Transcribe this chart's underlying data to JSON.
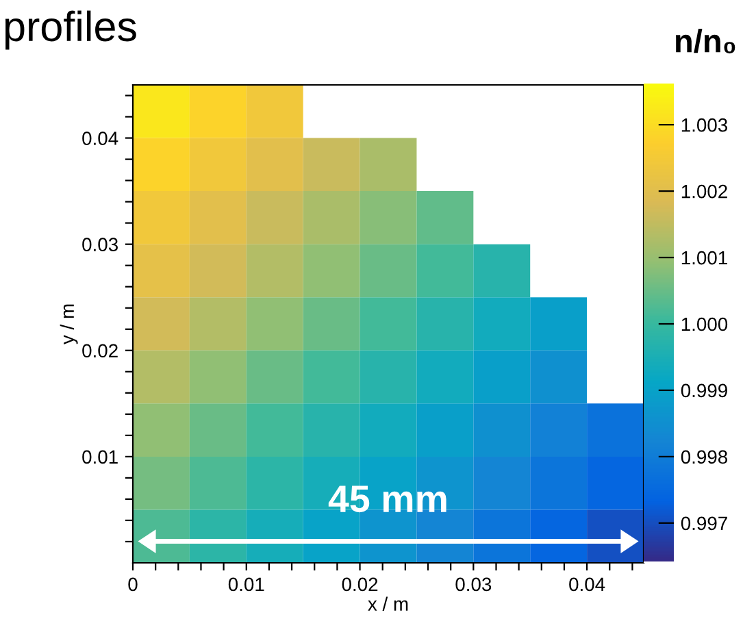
{
  "chart_data": {
    "type": "heatmap",
    "title": "profiles",
    "xlabel": "x / m",
    "ylabel": "y / m",
    "clabel": "n/n₀",
    "xlim": [
      0,
      0.045
    ],
    "ylim": [
      0,
      0.045
    ],
    "xticks": [
      0,
      0.01,
      0.02,
      0.03,
      0.04,
      {
        "value": 0.002,
        "label": null
      },
      {
        "value": 0.004,
        "label": null
      },
      {
        "value": 0.006,
        "label": null
      },
      {
        "value": 0.008,
        "label": null
      },
      {
        "value": 0.012,
        "label": null
      },
      {
        "value": 0.014,
        "label": null
      },
      {
        "value": 0.016,
        "label": null
      },
      {
        "value": 0.018,
        "label": null
      },
      {
        "value": 0.022,
        "label": null
      },
      {
        "value": 0.024,
        "label": null
      },
      {
        "value": 0.026,
        "label": null
      },
      {
        "value": 0.028,
        "label": null
      },
      {
        "value": 0.032,
        "label": null
      },
      {
        "value": 0.034,
        "label": null
      },
      {
        "value": 0.036,
        "label": null
      },
      {
        "value": 0.038,
        "label": null
      },
      {
        "value": 0.042,
        "label": null
      },
      {
        "value": 0.044,
        "label": null
      }
    ],
    "yticks": [
      0.01,
      0.02,
      0.03,
      0.04,
      {
        "value": 0.002,
        "label": null
      },
      {
        "value": 0.004,
        "label": null
      },
      {
        "value": 0.006,
        "label": null
      },
      {
        "value": 0.008,
        "label": null
      },
      {
        "value": 0.012,
        "label": null
      },
      {
        "value": 0.014,
        "label": null
      },
      {
        "value": 0.016,
        "label": null
      },
      {
        "value": 0.018,
        "label": null
      },
      {
        "value": 0.022,
        "label": null
      },
      {
        "value": 0.024,
        "label": null
      },
      {
        "value": 0.026,
        "label": null
      },
      {
        "value": 0.028,
        "label": null
      },
      {
        "value": 0.032,
        "label": null
      },
      {
        "value": 0.034,
        "label": null
      },
      {
        "value": 0.036,
        "label": null
      },
      {
        "value": 0.038,
        "label": null
      },
      {
        "value": 0.042,
        "label": null
      },
      {
        "value": 0.044,
        "label": null
      }
    ],
    "clim": [
      0.9964,
      1.0036
    ],
    "cticks": [
      0.997,
      0.998,
      0.999,
      {
        "value": 1.0,
        "label": "1.000"
      },
      1.001,
      1.002,
      1.003
    ],
    "colors": [
      "#352a87",
      "#0363e1",
      "#1485d4",
      "#06a7c6",
      "#38b99e",
      "#92bf73",
      "#d9ba56",
      "#fcce2e",
      "#f9fb0e"
    ],
    "cells": [
      [
        1.0032,
        1.0028,
        1.0024,
        null,
        null,
        null,
        null,
        null,
        null
      ],
      [
        1.0028,
        1.0024,
        1.002,
        1.0016,
        1.0012,
        null,
        null,
        null,
        null
      ],
      [
        1.0024,
        1.002,
        1.0016,
        1.0012,
        1.0008,
        1.0004,
        null,
        null,
        null
      ],
      [
        1.0021,
        1.0017,
        1.0013,
        1.0009,
        1.0005,
        1.0001,
        0.9997,
        null,
        null
      ],
      [
        1.0017,
        1.0013,
        1.0009,
        1.0005,
        1.0001,
        0.9997,
        0.9993,
        0.9989,
        null
      ],
      [
        1.0013,
        1.0009,
        1.0005,
        1.0001,
        0.9997,
        0.9993,
        0.9989,
        0.9985,
        null
      ],
      [
        1.0009,
        1.0005,
        1.0001,
        0.9997,
        0.9993,
        0.9989,
        0.9985,
        0.9981,
        0.9977
      ],
      [
        1.0006,
        1.0002,
        0.9998,
        0.9994,
        0.999,
        0.9986,
        0.9982,
        0.9978,
        0.9974
      ],
      [
        1.0002,
        0.9998,
        0.9994,
        0.999,
        0.9986,
        0.9982,
        0.9978,
        0.9974,
        0.997
      ]
    ],
    "annotations": [
      "45 mm"
    ],
    "grid": false
  }
}
